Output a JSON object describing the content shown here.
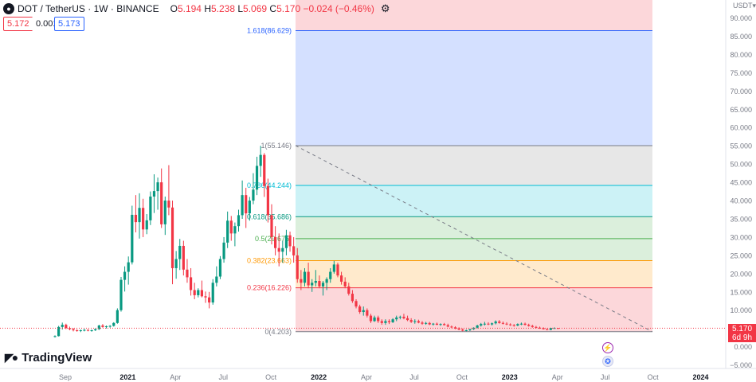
{
  "header": {
    "symbol": "DOT / TetherUS · 1W · BINANCE",
    "symbol_icon": "polkadot-icon",
    "open_label": "O",
    "open": "5.194",
    "high_label": "H",
    "high": "5.238",
    "low_label": "L",
    "low": "5.069",
    "close_label": "C",
    "close": "5.170",
    "change": "−0.024 (−0.46%)",
    "settings_icon": "gear-icon"
  },
  "quote": {
    "bid": "5.172",
    "spread": "0.001",
    "ask": "5.173"
  },
  "price_axis": {
    "currency": "USDT",
    "labels": [
      "90.000",
      "85.000",
      "80.000",
      "75.000",
      "70.000",
      "65.000",
      "60.000",
      "55.000",
      "50.000",
      "45.000",
      "40.000",
      "35.000",
      "30.000",
      "25.000",
      "20.000",
      "15.000",
      "10.000",
      "5.000",
      "0.000",
      "−5.000"
    ]
  },
  "last_price": {
    "price": "5.170",
    "countdown": "6d 9h"
  },
  "fib_levels": [
    {
      "label": "1.618(86.629)",
      "value": 86.629,
      "color": "#2962ff",
      "fill": "#2962ff",
      "fill_opacity": 0.2
    },
    {
      "label": "1(55.146)",
      "value": 55.146,
      "color": "#787b86",
      "fill": "#9e9e9e",
      "fill_opacity": 0.25
    },
    {
      "label": "0.786(44.244)",
      "value": 44.244,
      "color": "#00bcd4",
      "fill": "#00bcd4",
      "fill_opacity": 0.2
    },
    {
      "label": "0.618(35.686)",
      "value": 35.686,
      "color": "#089981",
      "fill": "#4caf50",
      "fill_opacity": 0.2
    },
    {
      "label": "0.5(29.675)",
      "value": 29.675,
      "color": "#4caf50",
      "fill": "#4caf50",
      "fill_opacity": 0.2
    },
    {
      "label": "0.382(23.663)",
      "value": 23.663,
      "color": "#ff9800",
      "fill": "#ff9800",
      "fill_opacity": 0.2
    },
    {
      "label": "0.236(16.226)",
      "value": 16.226,
      "color": "#f23645",
      "fill": "#f23645",
      "fill_opacity": 0.2
    },
    {
      "label": "0(4.203)",
      "value": 4.203,
      "color": "#787b86",
      "fill": "#f23645",
      "fill_opacity": 0.2
    }
  ],
  "time_axis": {
    "labels": [
      {
        "text": "Sep",
        "bold": false
      },
      {
        "text": "2021",
        "bold": true
      },
      {
        "text": "Apr",
        "bold": false
      },
      {
        "text": "Jul",
        "bold": false
      },
      {
        "text": "Oct",
        "bold": false
      },
      {
        "text": "2022",
        "bold": true
      },
      {
        "text": "Apr",
        "bold": false
      },
      {
        "text": "Jul",
        "bold": false
      },
      {
        "text": "Oct",
        "bold": false
      },
      {
        "text": "2023",
        "bold": true
      },
      {
        "text": "Apr",
        "bold": false
      },
      {
        "text": "Jul",
        "bold": false
      },
      {
        "text": "Oct",
        "bold": false
      },
      {
        "text": "2024",
        "bold": true
      }
    ],
    "week_index": [
      0,
      17,
      30,
      43,
      56,
      69,
      82,
      95,
      108,
      121,
      134,
      147,
      160,
      173
    ]
  },
  "brand": {
    "name": "TradingView",
    "icon": "tradingview-logo-icon"
  },
  "events": {
    "split_icon": "lightning-icon",
    "flag_icon": "us-flag-icon"
  },
  "colors": {
    "up": "#089981",
    "down": "#f23645",
    "axis_text": "#787b86"
  },
  "chart_data": {
    "type": "candlestick",
    "y_unit": "USDT",
    "ylim": [
      -7,
      93
    ],
    "candles": [
      [
        2.8,
        3.2,
        2.6,
        3.0
      ],
      [
        3.0,
        5.8,
        2.9,
        5.5
      ],
      [
        5.5,
        6.7,
        4.8,
        6.1
      ],
      [
        6.1,
        6.4,
        4.9,
        5.2
      ],
      [
        5.2,
        5.6,
        4.6,
        4.9
      ],
      [
        4.9,
        5.2,
        4.3,
        4.6
      ],
      [
        4.6,
        4.9,
        4.2,
        4.4
      ],
      [
        4.4,
        4.8,
        4.1,
        4.6
      ],
      [
        4.6,
        5.0,
        4.3,
        4.7
      ],
      [
        4.7,
        4.9,
        4.3,
        4.5
      ],
      [
        4.5,
        4.8,
        4.2,
        4.6
      ],
      [
        4.6,
        5.1,
        4.4,
        4.9
      ],
      [
        4.9,
        6.1,
        4.7,
        5.9
      ],
      [
        5.9,
        6.3,
        5.3,
        5.5
      ],
      [
        5.5,
        5.9,
        5.1,
        5.7
      ],
      [
        5.7,
        6.0,
        5.3,
        5.8
      ],
      [
        5.8,
        6.8,
        5.6,
        6.6
      ],
      [
        6.6,
        10.6,
        6.4,
        10.1
      ],
      [
        10.1,
        19.2,
        9.7,
        18.4
      ],
      [
        18.4,
        22.1,
        15.2,
        20.6
      ],
      [
        20.6,
        24.8,
        17.1,
        23.2
      ],
      [
        23.2,
        38.7,
        22.6,
        36.2
      ],
      [
        36.2,
        41.6,
        31.4,
        34.2
      ],
      [
        34.2,
        42.1,
        29.7,
        38.1
      ],
      [
        38.1,
        40.6,
        30.1,
        32.2
      ],
      [
        32.2,
        36.4,
        30.9,
        34.7
      ],
      [
        34.7,
        42.6,
        33.4,
        41.2
      ],
      [
        41.2,
        47.3,
        36.7,
        42.7
      ],
      [
        42.7,
        46.4,
        37.6,
        45.1
      ],
      [
        45.1,
        48.9,
        32.6,
        33.6
      ],
      [
        33.6,
        41.2,
        30.7,
        40.1
      ],
      [
        40.1,
        49.8,
        36.1,
        38.2
      ],
      [
        38.2,
        40.1,
        17.2,
        21.6
      ],
      [
        21.6,
        26.3,
        18.7,
        24.1
      ],
      [
        24.1,
        29.6,
        21.1,
        27.7
      ],
      [
        27.7,
        29.1,
        19.6,
        21.2
      ],
      [
        21.2,
        24.1,
        17.6,
        19.1
      ],
      [
        19.1,
        21.6,
        14.1,
        15.6
      ],
      [
        15.6,
        17.6,
        13.1,
        14.2
      ],
      [
        14.2,
        16.1,
        13.6,
        15.6
      ],
      [
        15.6,
        18.2,
        13.6,
        13.9
      ],
      [
        13.9,
        15.2,
        12.1,
        13.6
      ],
      [
        13.6,
        15.1,
        10.6,
        12.2
      ],
      [
        12.2,
        18.6,
        11.6,
        17.6
      ],
      [
        17.6,
        22.1,
        16.6,
        19.3
      ],
      [
        19.3,
        24.9,
        18.6,
        24.1
      ],
      [
        24.1,
        30.1,
        23.1,
        28.6
      ],
      [
        28.6,
        37.1,
        27.1,
        34.6
      ],
      [
        34.6,
        35.9,
        29.1,
        31.1
      ],
      [
        31.1,
        34.1,
        27.6,
        33.1
      ],
      [
        33.1,
        37.6,
        31.6,
        36.1
      ],
      [
        36.1,
        45.6,
        35.1,
        41.6
      ],
      [
        41.6,
        43.6,
        32.6,
        36.6
      ],
      [
        36.6,
        41.1,
        34.6,
        40.1
      ],
      [
        40.1,
        47.6,
        39.1,
        43.1
      ],
      [
        43.1,
        52.1,
        41.6,
        49.6
      ],
      [
        49.6,
        55.1,
        46.6,
        52.6
      ],
      [
        52.6,
        53.1,
        41.1,
        44.1
      ],
      [
        44.1,
        46.1,
        34.1,
        36.1
      ],
      [
        36.1,
        39.1,
        28.1,
        30.1
      ],
      [
        30.1,
        33.1,
        25.1,
        27.1
      ],
      [
        27.1,
        31.1,
        22.1,
        26.1
      ],
      [
        26.1,
        29.1,
        23.1,
        27.1
      ],
      [
        27.1,
        32.1,
        25.1,
        30.6
      ],
      [
        30.6,
        31.6,
        26.1,
        27.6
      ],
      [
        27.6,
        30.1,
        23.1,
        25.1
      ],
      [
        25.1,
        27.1,
        17.6,
        18.6
      ],
      [
        18.6,
        21.1,
        15.6,
        17.6
      ],
      [
        17.6,
        21.6,
        16.6,
        20.6
      ],
      [
        20.6,
        23.1,
        16.1,
        16.9
      ],
      [
        16.9,
        18.6,
        15.1,
        17.6
      ],
      [
        17.6,
        21.1,
        16.6,
        18.1
      ],
      [
        18.1,
        19.6,
        16.1,
        16.6
      ],
      [
        16.6,
        18.1,
        14.1,
        17.6
      ],
      [
        17.6,
        19.1,
        15.6,
        18.6
      ],
      [
        18.6,
        21.6,
        17.6,
        20.6
      ],
      [
        20.6,
        23.6,
        20.1,
        22.6
      ],
      [
        22.6,
        23.1,
        19.1,
        19.6
      ],
      [
        19.6,
        20.6,
        17.1,
        17.9
      ],
      [
        17.9,
        19.1,
        16.1,
        16.6
      ],
      [
        16.6,
        17.6,
        14.1,
        14.6
      ],
      [
        14.6,
        15.6,
        12.1,
        12.6
      ],
      [
        12.6,
        13.1,
        10.6,
        11.1
      ],
      [
        11.1,
        11.6,
        9.1,
        9.6
      ],
      [
        9.6,
        11.1,
        8.6,
        10.1
      ],
      [
        10.1,
        10.6,
        8.1,
        8.6
      ],
      [
        8.6,
        9.1,
        6.6,
        7.1
      ],
      [
        7.1,
        8.6,
        6.9,
        8.1
      ],
      [
        8.1,
        8.6,
        6.6,
        7.1
      ],
      [
        7.1,
        7.6,
        6.1,
        6.6
      ],
      [
        6.6,
        7.6,
        6.1,
        7.1
      ],
      [
        7.1,
        7.6,
        6.3,
        6.8
      ],
      [
        6.8,
        7.9,
        6.6,
        7.6
      ],
      [
        7.6,
        8.6,
        7.1,
        8.1
      ],
      [
        8.1,
        8.6,
        7.6,
        8.3
      ],
      [
        8.3,
        9.1,
        7.6,
        7.9
      ],
      [
        7.9,
        8.6,
        7.1,
        7.4
      ],
      [
        7.4,
        7.9,
        6.6,
        6.9
      ],
      [
        6.9,
        7.6,
        6.4,
        7.1
      ],
      [
        7.1,
        7.5,
        6.5,
        6.7
      ],
      [
        6.7,
        7.1,
        6.1,
        6.4
      ],
      [
        6.4,
        6.9,
        6.1,
        6.6
      ],
      [
        6.6,
        6.9,
        6.0,
        6.2
      ],
      [
        6.2,
        6.6,
        5.9,
        6.4
      ],
      [
        6.4,
        6.7,
        6.0,
        6.1
      ],
      [
        6.1,
        6.5,
        5.8,
        6.3
      ],
      [
        6.3,
        6.6,
        5.9,
        6.0
      ],
      [
        6.0,
        6.4,
        5.4,
        5.6
      ],
      [
        5.6,
        5.9,
        5.2,
        5.4
      ],
      [
        5.4,
        5.7,
        4.9,
        5.1
      ],
      [
        5.1,
        5.4,
        4.6,
        4.8
      ],
      [
        4.8,
        5.1,
        4.3,
        4.5
      ],
      [
        4.5,
        4.8,
        4.3,
        4.6
      ],
      [
        4.6,
        5.0,
        4.4,
        4.9
      ],
      [
        4.9,
        5.4,
        4.7,
        5.3
      ],
      [
        5.3,
        6.1,
        5.1,
        5.9
      ],
      [
        5.9,
        6.6,
        5.6,
        6.3
      ],
      [
        6.3,
        6.9,
        5.9,
        6.4
      ],
      [
        6.4,
        6.8,
        6.0,
        6.2
      ],
      [
        6.2,
        6.7,
        5.9,
        6.5
      ],
      [
        6.5,
        7.3,
        6.2,
        7.0
      ],
      [
        7.0,
        7.4,
        6.4,
        6.6
      ],
      [
        6.6,
        7.0,
        6.2,
        6.4
      ],
      [
        6.4,
        6.8,
        6.0,
        6.2
      ],
      [
        6.2,
        6.5,
        5.8,
        6.0
      ],
      [
        6.0,
        6.3,
        5.6,
        5.9
      ],
      [
        5.9,
        6.5,
        5.7,
        6.3
      ],
      [
        6.3,
        6.7,
        6.0,
        6.4
      ],
      [
        6.4,
        6.7,
        5.9,
        6.1
      ],
      [
        6.1,
        6.4,
        5.6,
        5.8
      ],
      [
        5.8,
        6.1,
        5.3,
        5.5
      ],
      [
        5.5,
        5.8,
        5.1,
        5.3
      ],
      [
        5.3,
        5.6,
        5.0,
        5.2
      ],
      [
        5.2,
        5.4,
        4.8,
        4.9
      ],
      [
        4.9,
        5.1,
        4.6,
        4.7
      ],
      [
        4.7,
        5.3,
        4.6,
        5.2
      ],
      [
        5.2,
        5.4,
        5.0,
        5.2
      ],
      [
        5.194,
        5.238,
        5.069,
        5.17
      ]
    ]
  }
}
